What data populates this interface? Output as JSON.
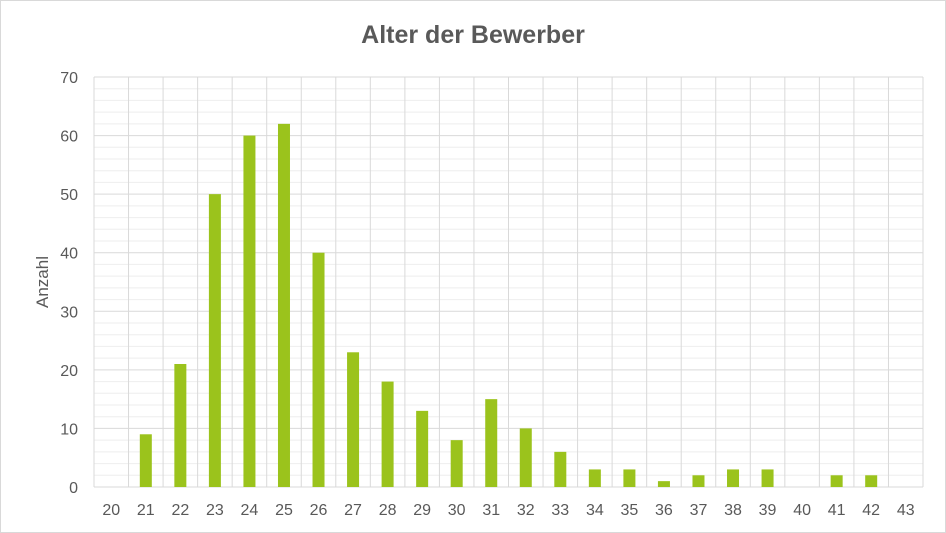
{
  "chart_data": {
    "type": "bar",
    "title": "Alter der Bewerber",
    "xlabel": "",
    "ylabel": "Anzahl",
    "categories": [
      "20",
      "21",
      "22",
      "23",
      "24",
      "25",
      "26",
      "27",
      "28",
      "29",
      "30",
      "31",
      "32",
      "33",
      "34",
      "35",
      "36",
      "37",
      "38",
      "39",
      "40",
      "41",
      "42",
      "43"
    ],
    "values": [
      0,
      9,
      21,
      50,
      60,
      62,
      40,
      23,
      18,
      13,
      8,
      15,
      10,
      6,
      3,
      3,
      1,
      2,
      3,
      3,
      0,
      2,
      2,
      0
    ],
    "ylim": [
      0,
      70
    ],
    "yticks": [
      0,
      10,
      20,
      30,
      40,
      50,
      60,
      70
    ],
    "grid": true,
    "legend": "none",
    "bar_color": "#9bc31c",
    "grid_color": "#d9d9d9",
    "minor_grid_color": "#eeeeee",
    "text_color": "#595959"
  }
}
